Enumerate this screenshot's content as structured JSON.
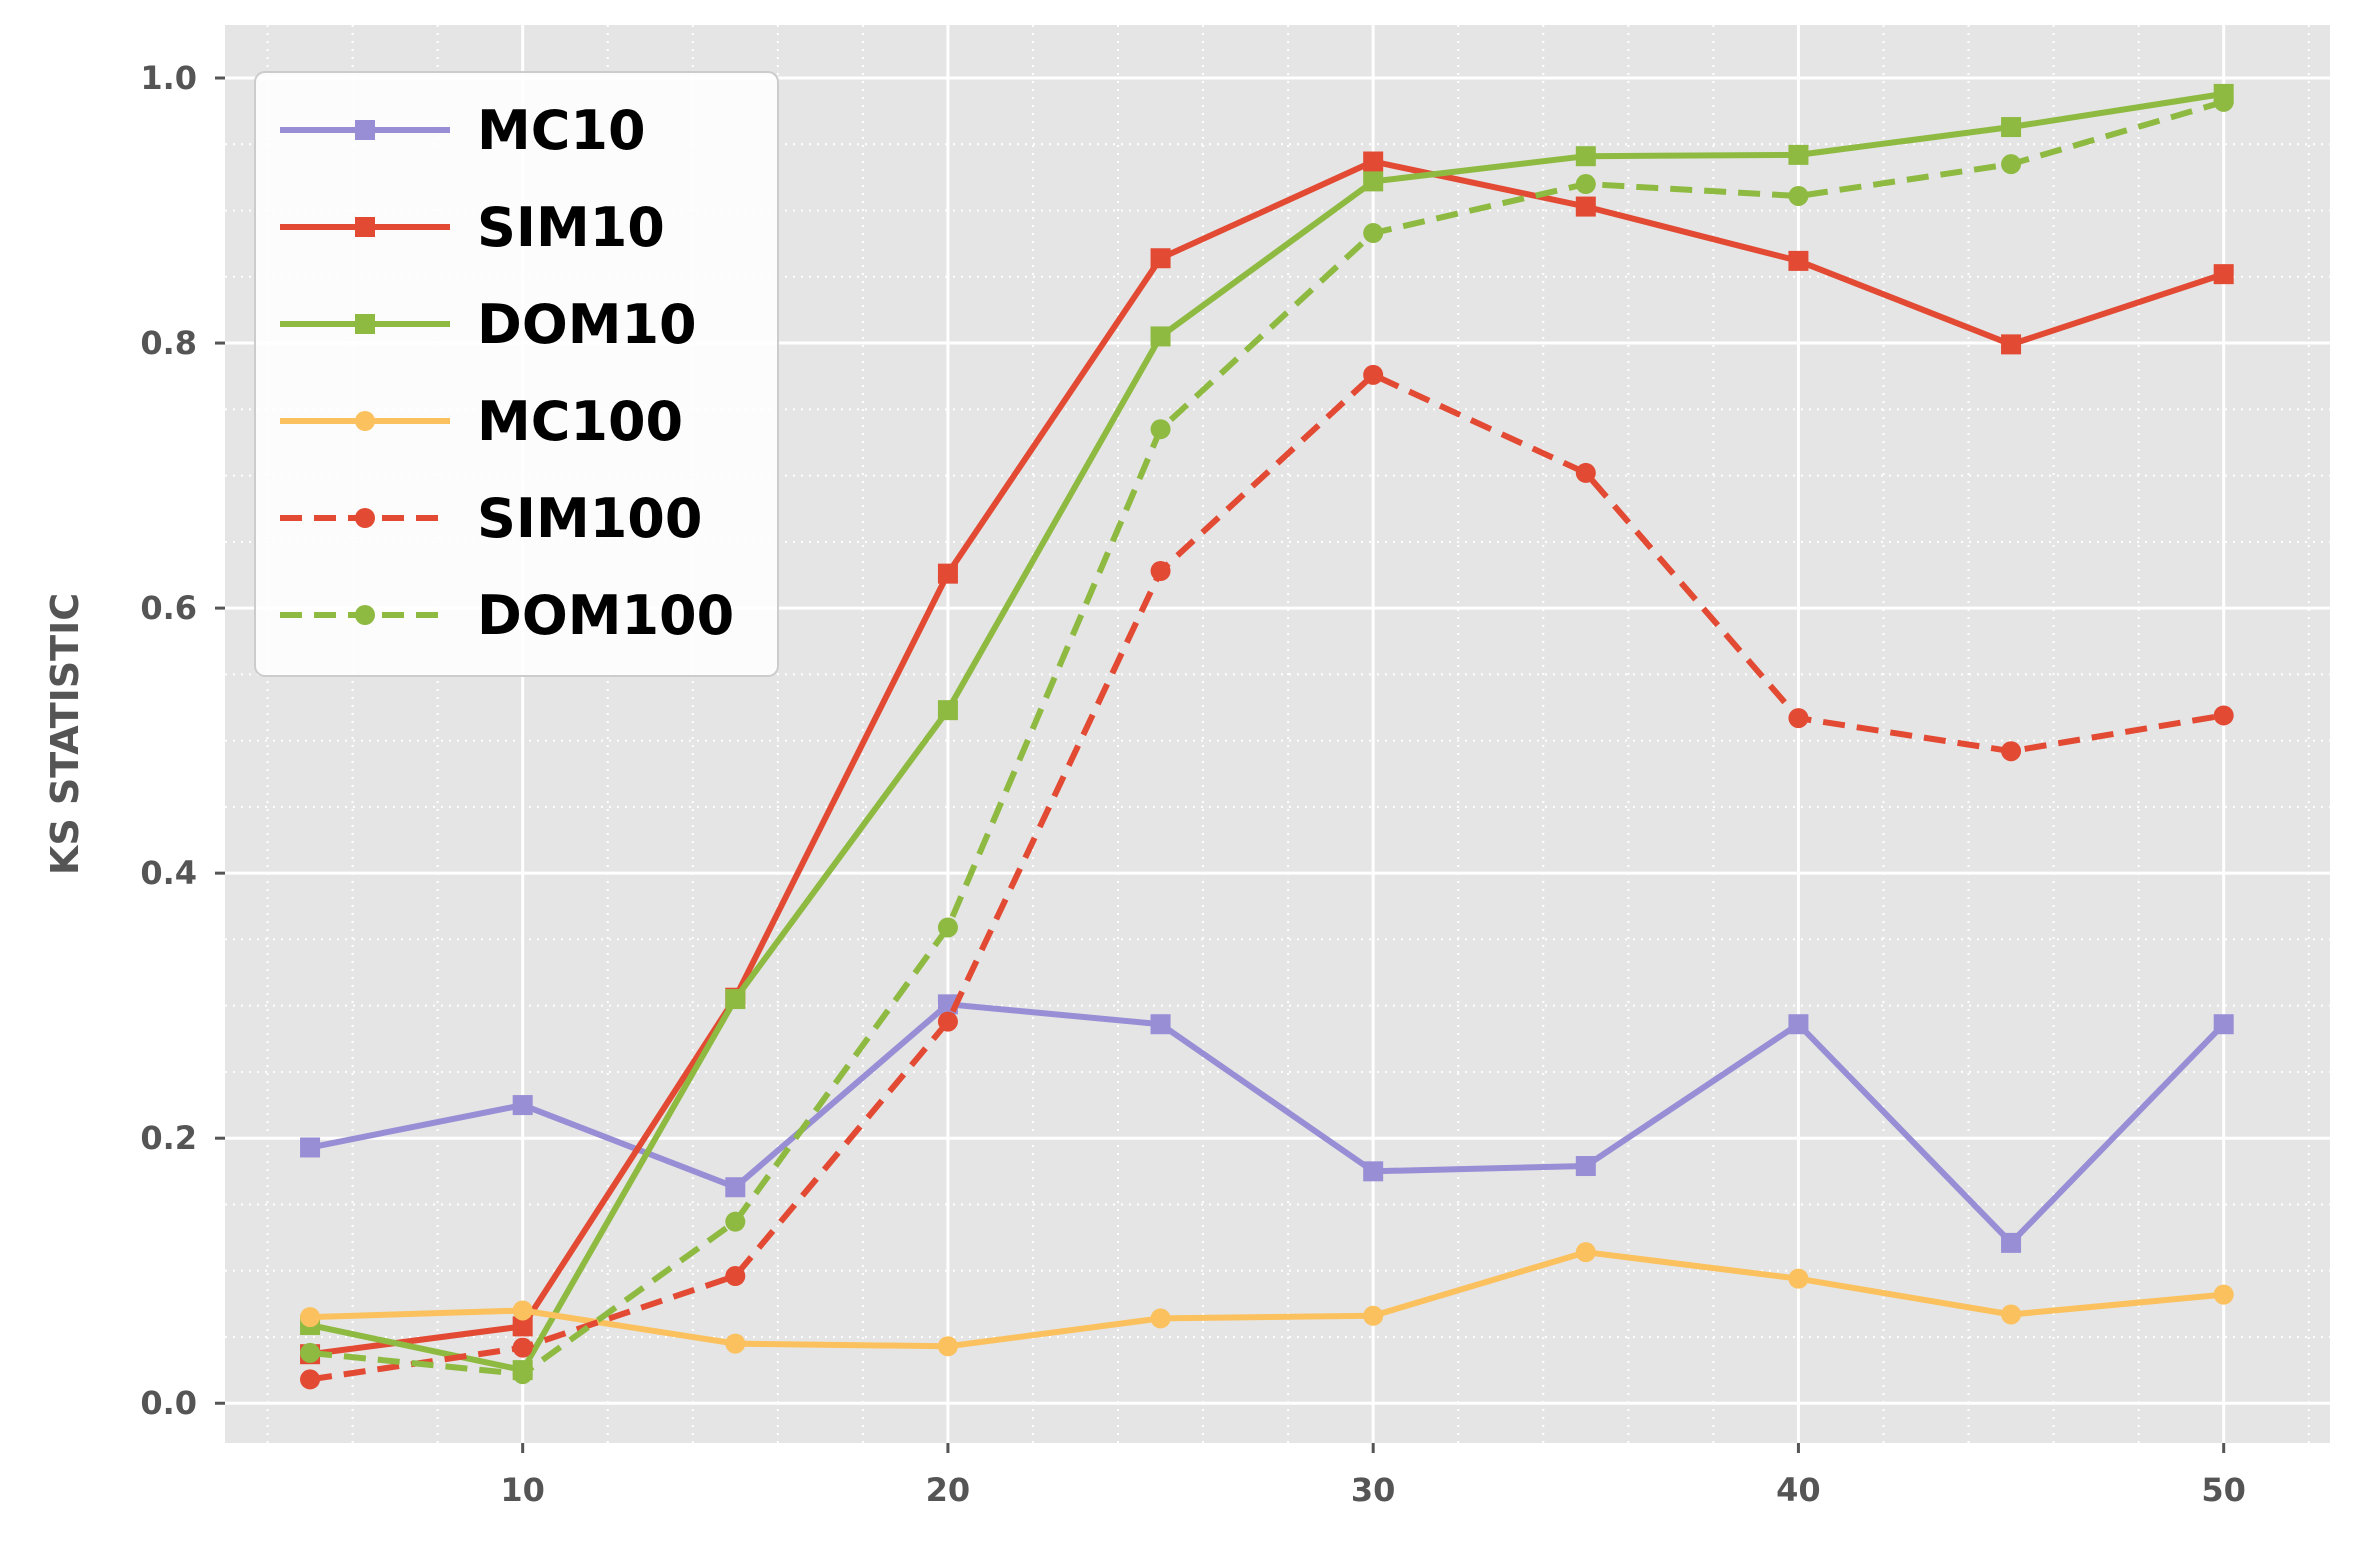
{
  "chart_data": {
    "type": "line",
    "title": "",
    "xlabel": "",
    "ylabel": "KS STATISTIC",
    "xlim": [
      3,
      52.5
    ],
    "ylim": [
      -0.03,
      1.04
    ],
    "xticks": [
      10,
      20,
      30,
      40,
      50
    ],
    "yticks": [
      0.0,
      0.2,
      0.4,
      0.6,
      0.8,
      1.0
    ],
    "xtick_labels": [
      "10",
      "20",
      "30",
      "40",
      "50"
    ],
    "ytick_labels": [
      "0.0",
      "0.2",
      "0.4",
      "0.6",
      "0.8",
      "1.0"
    ],
    "grid": true,
    "minor_grid": true,
    "background": "#e5e5e5",
    "legend_position": "upper-left",
    "x": [
      5,
      10,
      15,
      20,
      25,
      30,
      35,
      40,
      45,
      50
    ],
    "series": [
      {
        "name": "MC10",
        "color": "#988ed5",
        "marker": "square",
        "dash": "solid",
        "values": [
          0.193,
          0.225,
          0.163,
          0.301,
          0.286,
          0.175,
          0.179,
          0.286,
          0.121,
          0.286
        ]
      },
      {
        "name": "SIM10",
        "color": "#e24a33",
        "marker": "square",
        "dash": "solid",
        "values": [
          0.037,
          0.058,
          0.306,
          0.626,
          0.864,
          0.937,
          0.903,
          0.862,
          0.799,
          0.852
        ]
      },
      {
        "name": "DOM10",
        "color": "#8eba42",
        "marker": "square",
        "dash": "solid",
        "values": [
          0.059,
          0.025,
          0.305,
          0.523,
          0.805,
          0.922,
          0.941,
          0.942,
          0.963,
          0.988
        ]
      },
      {
        "name": "MC100",
        "color": "#fbc15e",
        "marker": "circle",
        "dash": "solid",
        "values": [
          0.065,
          0.07,
          0.045,
          0.043,
          0.064,
          0.066,
          0.114,
          0.094,
          0.067,
          0.082
        ]
      },
      {
        "name": "SIM100",
        "color": "#e24a33",
        "marker": "circle",
        "dash": "dashed",
        "values": [
          0.018,
          0.042,
          0.096,
          0.288,
          0.628,
          0.776,
          0.702,
          0.517,
          0.492,
          0.519
        ]
      },
      {
        "name": "DOM100",
        "color": "#8eba42",
        "marker": "circle",
        "dash": "dashed",
        "values": [
          0.038,
          0.022,
          0.137,
          0.359,
          0.735,
          0.883,
          0.92,
          0.911,
          0.935,
          0.982
        ]
      }
    ]
  }
}
